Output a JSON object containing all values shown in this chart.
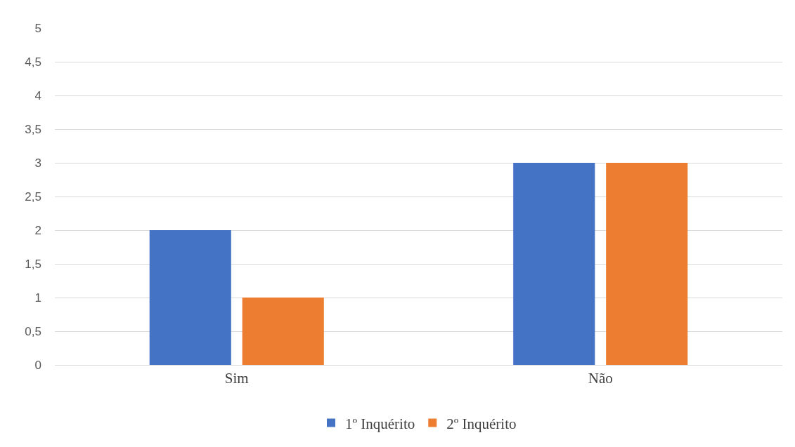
{
  "chart_data": {
    "type": "bar",
    "categories": [
      "Sim",
      "Não"
    ],
    "series": [
      {
        "name": "1º Inquérito",
        "color": "#4472c4",
        "values": [
          2,
          3
        ]
      },
      {
        "name": "2º Inquérito",
        "color": "#ed7d31",
        "values": [
          1,
          3
        ]
      }
    ],
    "ylim": [
      0,
      5
    ],
    "yticks": [
      0,
      {
        "value": 0.5,
        "label": "0,5"
      },
      1,
      {
        "value": 1.5,
        "label": "1,5"
      },
      2,
      {
        "value": 2.5,
        "label": "2,5"
      },
      3,
      {
        "value": 3.5,
        "label": "3,5"
      },
      4,
      {
        "value": 4.5,
        "label": "4,5"
      },
      5
    ],
    "grid": "y",
    "legend": "bottom"
  }
}
